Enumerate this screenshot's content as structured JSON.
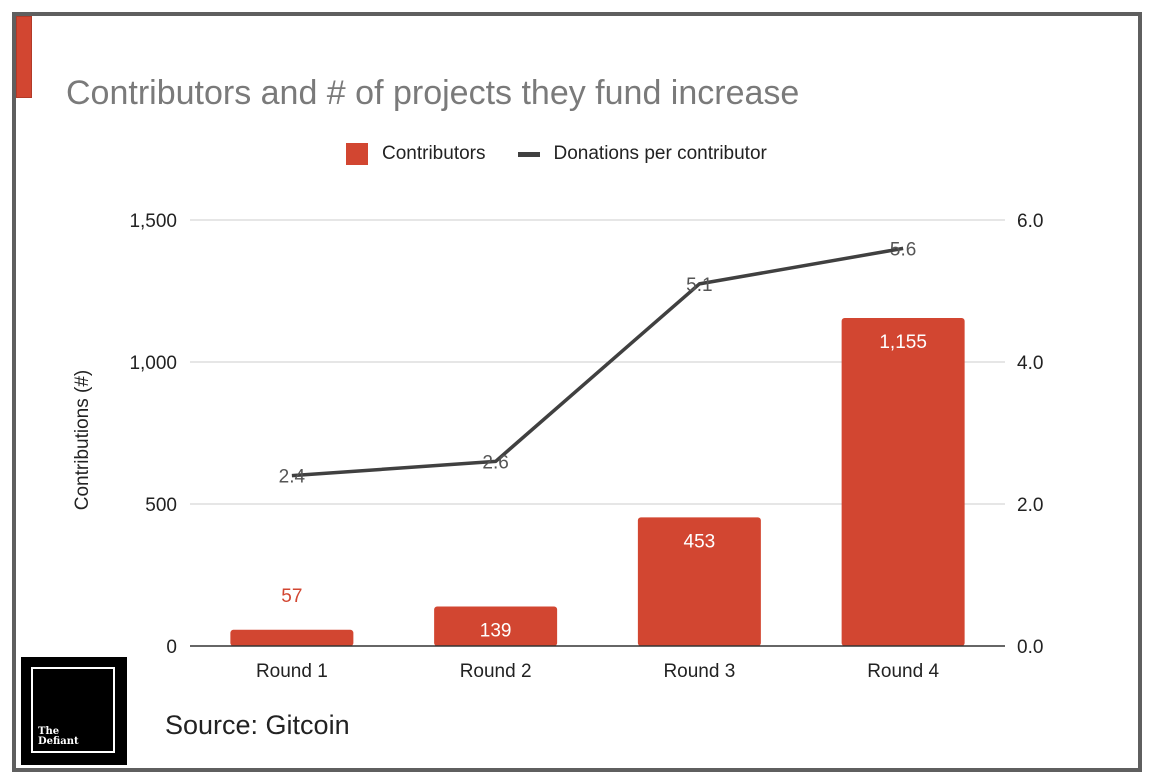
{
  "brand": {
    "accent": "#d24631",
    "line": "#404040",
    "frame": "#5f5f5f"
  },
  "chart_data": {
    "type": "bar",
    "title": "Contributors and # of projects they fund increase",
    "categories": [
      "Round 1",
      "Round 2",
      "Round 3",
      "Round 4"
    ],
    "series": [
      {
        "name": "Contributors",
        "type": "bar",
        "axis": "left",
        "color": "#d24631",
        "values": [
          57,
          139,
          453,
          1155
        ],
        "labels": [
          "57",
          "139",
          "453",
          "1,155"
        ]
      },
      {
        "name": "Donations per contributor",
        "type": "line",
        "axis": "right",
        "color": "#404040",
        "values": [
          2.4,
          2.6,
          5.1,
          5.6
        ],
        "labels": [
          "2.4",
          "2.6",
          "5.1",
          "5.6"
        ]
      }
    ],
    "ylabel": "Contributions (#)",
    "ylim": [
      0,
      1500
    ],
    "yticks": [
      "0",
      "500",
      "1,000",
      "1,500"
    ],
    "y2lim": [
      0,
      6
    ],
    "y2ticks": [
      "0.0",
      "2.0",
      "4.0",
      "6.0"
    ],
    "grid": true,
    "legend_position": "top-center"
  },
  "logo": {
    "line1": "The",
    "line2": "Defiant"
  },
  "source": "Source: Gitcoin"
}
